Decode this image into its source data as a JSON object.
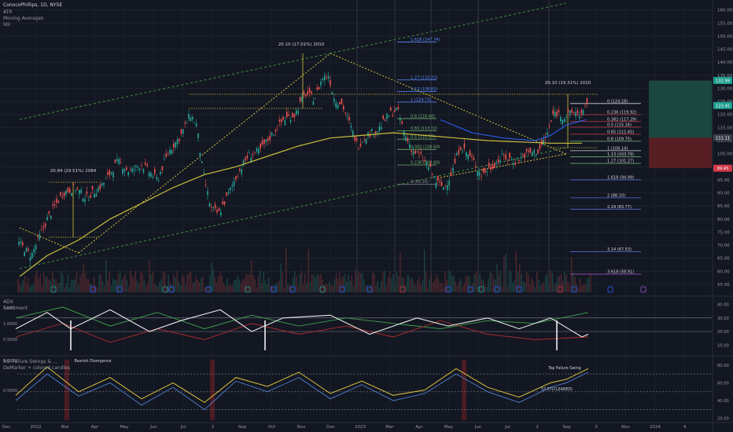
{
  "header": {
    "symbol": "ConocoPhillips, 1D, NYSE",
    "indicators": [
      "ATR",
      "Moving Averages",
      "Vol"
    ]
  },
  "panes": {
    "adx": {
      "title": "ADX",
      "subtitle": "Sentiment"
    },
    "rsi": {
      "title": "RSI Failure Swings & ...",
      "subtitle": "DeMarker + colored candles"
    }
  },
  "colors": {
    "background": "#131722",
    "up": "#26a69a",
    "down": "#ef5350",
    "ma_long": "#c9c13c",
    "ma_mid": "#2a62ff",
    "fib": "#5a8cff",
    "channel": "#3e8f3e",
    "guide": "#d6c23a",
    "adx_line": "#e8e8e8",
    "adx_plus": "#3fa34d",
    "adx_minus": "#b32d2d",
    "demarker": "#4f7ecf",
    "rsi": "#d8c040",
    "gain_zone": "#1c4d43",
    "loss_zone": "#5e1f24"
  },
  "chart_data": [
    {
      "type": "line",
      "pane": "price",
      "yscale": "linear",
      "ylim": [
        52,
        162
      ],
      "yticks": [
        "160.00",
        "155.00",
        "150.00",
        "145.00",
        "140.00",
        "135.00",
        "130.00",
        "125.00",
        "120.00",
        "115.00",
        "110.00",
        "105.00",
        "100.00",
        "95.00",
        "90.00",
        "85.00",
        "80.00",
        "75.00",
        "70.00",
        "65.00",
        "60.00",
        "55.00"
      ],
      "xticks": [
        "Dec",
        "2022",
        "Mar",
        "Apr",
        "May",
        "Jun",
        "Jul",
        "2",
        "Sep",
        "Oct",
        "Nov",
        "Dec",
        "2023",
        "Mar",
        "Apr",
        "May",
        "Jun",
        "Jul",
        "2",
        "Sep",
        "3",
        "Nov",
        "2024",
        "4"
      ],
      "series": [
        {
          "values": [
            [
              0,
              75
            ],
            [
              20,
              72
            ],
            [
              40,
              66
            ],
            [
              60,
              80
            ],
            [
              80,
              90
            ],
            [
              95,
              92
            ],
            [
              110,
              88
            ],
            [
              130,
              93
            ],
            [
              150,
              102
            ],
            [
              165,
              98
            ],
            [
              180,
              101
            ],
            [
              200,
              95
            ],
            [
              215,
              106
            ],
            [
              230,
              112
            ],
            [
              242,
              120
            ],
            [
              250,
              116
            ],
            [
              258,
              98
            ],
            [
              268,
              84
            ],
            [
              278,
              82
            ],
            [
              288,
              88
            ],
            [
              300,
              96
            ],
            [
              315,
              104
            ],
            [
              330,
              106
            ],
            [
              345,
              112
            ],
            [
              360,
              118
            ],
            [
              375,
              120
            ],
            [
              388,
              128
            ],
            [
              400,
              126
            ],
            [
              410,
              134
            ],
            [
              418,
              135
            ],
            [
              425,
              126
            ],
            [
              435,
              124
            ],
            [
              445,
              116
            ],
            [
              455,
              108
            ],
            [
              465,
              112
            ],
            [
              480,
              114
            ],
            [
              495,
              120
            ],
            [
              505,
              122
            ],
            [
              515,
              112
            ],
            [
              525,
              106
            ],
            [
              535,
              104
            ],
            [
              545,
              100
            ],
            [
              555,
              94
            ],
            [
              565,
              92
            ],
            [
              575,
              98
            ],
            [
              585,
              108
            ],
            [
              600,
              103
            ],
            [
              612,
              97
            ],
            [
              625,
              100
            ],
            [
              640,
              104
            ],
            [
              655,
              102
            ],
            [
              670,
              105
            ],
            [
              685,
              106
            ],
            [
              695,
              112
            ],
            [
              705,
              121
            ],
            [
              718,
              119
            ],
            [
              730,
              121
            ],
            [
              740,
              120
            ],
            [
              748,
              124
            ]
          ]
        },
        {
          "name": "Moving Averages",
          "values": [
            [
              25,
              58
            ],
            [
              60,
              66
            ],
            [
              100,
              72
            ],
            [
              140,
              80
            ],
            [
              180,
              86
            ],
            [
              220,
              92
            ],
            [
              260,
              97
            ],
            [
              300,
              100
            ],
            [
              340,
              104
            ],
            [
              380,
              108
            ],
            [
              420,
              111
            ],
            [
              460,
              112
            ],
            [
              500,
              113
            ],
            [
              540,
              112
            ],
            [
              580,
              111
            ],
            [
              620,
              110
            ],
            [
              660,
              109.5
            ],
            [
              700,
              109
            ],
            [
              740,
              109
            ]
          ]
        },
        {
          "values": [
            [
              560,
              118
            ],
            [
              600,
              113
            ],
            [
              640,
              111
            ],
            [
              680,
              110
            ],
            [
              700,
              112
            ],
            [
              720,
              116
            ],
            [
              745,
              118
            ]
          ]
        }
      ],
      "annotations": [
        "20.10 (17.01%) 2010",
        "20.84 (29.51%) 2084",
        "20.10 (19.31%) 2010"
      ],
      "fib_levels": [
        {
          "label": "2 (166.36)",
          "value": 166.36
        },
        {
          "label": "1.618 (147.74)",
          "value": 147.74
        },
        {
          "label": "1.27 (133.22)",
          "value": 133.22
        },
        {
          "label": "1.13 (128.82)",
          "value": 128.82
        },
        {
          "label": "1 (124.73)",
          "value": 124.73
        },
        {
          "label": "0.8 (118.44)",
          "value": 118.44
        },
        {
          "label": "0.65 (113.72)",
          "value": 113.72
        },
        {
          "label": "0.5 (110.57)",
          "value": 110.57
        },
        {
          "label": "0.382 (106.64)",
          "value": 106.64
        },
        {
          "label": "0.236 (100.69)",
          "value": 100.69
        },
        {
          "label": "0 (93.26)",
          "value": 93.26
        }
      ],
      "fib_levels_right": [
        {
          "label": "0 (124.18)",
          "value": 124.18
        },
        {
          "label": "0.236 (119.92)",
          "value": 119.92
        },
        {
          "label": "0.382 (117.29)",
          "value": 117.29
        },
        {
          "label": "0.5 (115.16)",
          "value": 115.16
        },
        {
          "label": "0.65 (112.45)",
          "value": 112.45
        },
        {
          "label": "0.8 (109.75)",
          "value": 109.75
        },
        {
          "label": "1 (106.14)",
          "value": 106.14
        },
        {
          "label": "1.13 (103.79)",
          "value": 103.79
        },
        {
          "label": "1.27 (101.27)",
          "value": 101.27
        },
        {
          "label": "1.618 (94.99)",
          "value": 94.99
        },
        {
          "label": "2 (88.10)",
          "value": 88.1
        },
        {
          "label": "2.24 (83.77)",
          "value": 83.77
        },
        {
          "label": "3.14 (67.53)",
          "value": 67.53
        },
        {
          "label": "3.618 (58.91)",
          "value": 58.91
        }
      ],
      "price_tags": [
        {
          "label": "132.99",
          "value": 132.99,
          "color": "#1f9f8f"
        },
        {
          "label": "123.45",
          "value": 123.45,
          "color": "#1f9f8f"
        },
        {
          "label": "111.11",
          "value": 111.11,
          "color": "#3a3f4b"
        },
        {
          "label": "99.45",
          "value": 99.45,
          "color": "#d2394a"
        }
      ],
      "position_box": {
        "entry": 111.11,
        "target": 132.99,
        "stop": 99.45
      }
    },
    {
      "type": "line",
      "pane": "adx",
      "left_ticks": [
        "1.500",
        "1.0000",
        "0.5000"
      ],
      "right_ticks": [
        "40.00",
        "30.00",
        "20.00",
        "10.00"
      ],
      "ylim": [
        5,
        42
      ],
      "series": [
        {
          "name": "ADX",
          "values": [
            [
              20,
              22
            ],
            [
              60,
              34
            ],
            [
              90,
              22
            ],
            [
              140,
              36
            ],
            [
              190,
              20
            ],
            [
              230,
              28
            ],
            [
              280,
              36
            ],
            [
              320,
              20
            ],
            [
              360,
              30
            ],
            [
              420,
              32
            ],
            [
              470,
              18
            ],
            [
              530,
              30
            ],
            [
              570,
              24
            ],
            [
              620,
              30
            ],
            [
              660,
              22
            ],
            [
              700,
              30
            ],
            [
              740,
              16
            ],
            [
              748,
              18
            ]
          ]
        },
        {
          "values": [
            [
              20,
              30
            ],
            [
              80,
              38
            ],
            [
              140,
              24
            ],
            [
              200,
              34
            ],
            [
              260,
              22
            ],
            [
              320,
              32
            ],
            [
              380,
              24
            ],
            [
              440,
              30
            ],
            [
              500,
              26
            ],
            [
              560,
              22
            ],
            [
              620,
              28
            ],
            [
              680,
              26
            ],
            [
              748,
              34
            ]
          ]
        },
        {
          "values": [
            [
              20,
              16
            ],
            [
              80,
              26
            ],
            [
              140,
              12
            ],
            [
              200,
              22
            ],
            [
              260,
              14
            ],
            [
              320,
              26
            ],
            [
              380,
              18
            ],
            [
              440,
              24
            ],
            [
              500,
              16
            ],
            [
              560,
              28
            ],
            [
              620,
              18
            ],
            [
              680,
              14
            ],
            [
              748,
              16
            ]
          ]
        }
      ],
      "hlines": [
        30,
        20
      ]
    },
    {
      "type": "line",
      "pane": "rsi",
      "left_ticks": [
        "1.0000",
        "0.5000"
      ],
      "right_ticks": [
        "80.00",
        "60.00",
        "40.00",
        "20.00"
      ],
      "ylim": [
        18,
        86
      ],
      "series": [
        {
          "name": "DeMarker",
          "values": [
            [
              20,
              40
            ],
            [
              60,
              70
            ],
            [
              100,
              45
            ],
            [
              140,
              60
            ],
            [
              180,
              35
            ],
            [
              220,
              55
            ],
            [
              260,
              30
            ],
            [
              300,
              62
            ],
            [
              340,
              50
            ],
            [
              380,
              66
            ],
            [
              420,
              42
            ],
            [
              460,
              58
            ],
            [
              500,
              40
            ],
            [
              540,
              48
            ],
            [
              580,
              70
            ],
            [
              620,
              50
            ],
            [
              660,
              38
            ],
            [
              700,
              55
            ],
            [
              720,
              60
            ],
            [
              748,
              72
            ]
          ]
        },
        {
          "name": "RSI",
          "values": [
            [
              20,
              46
            ],
            [
              60,
              78
            ],
            [
              100,
              50
            ],
            [
              140,
              66
            ],
            [
              180,
              42
            ],
            [
              220,
              60
            ],
            [
              260,
              38
            ],
            [
              300,
              66
            ],
            [
              340,
              56
            ],
            [
              380,
              72
            ],
            [
              420,
              48
            ],
            [
              460,
              62
            ],
            [
              500,
              46
            ],
            [
              540,
              52
            ],
            [
              580,
              76
            ],
            [
              620,
              55
            ],
            [
              660,
              44
            ],
            [
              700,
              60
            ],
            [
              720,
              64
            ],
            [
              748,
              76
            ]
          ]
        }
      ],
      "hlines": [
        70,
        50,
        30
      ],
      "annotations": [
        "Bearish Divergence",
        "Top Failure Swing",
        "57.57(CLEARED)"
      ]
    }
  ]
}
